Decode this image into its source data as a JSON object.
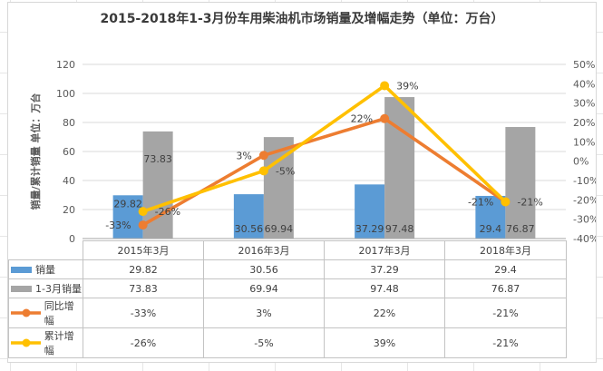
{
  "chart_data": {
    "type": "combo-bar-line",
    "title": "2015-2018年1-3月份车用柴油机市场销量及增幅走势（单位：万台）",
    "ylabel": "销量/累计销量 单位：万台",
    "categories": [
      "2015年3月",
      "2016年3月",
      "2017年3月",
      "2018年3月"
    ],
    "series": [
      {
        "name": "销量",
        "type": "bar",
        "axis": "left",
        "color": "#5B9BD5",
        "values": [
          29.82,
          30.56,
          37.29,
          29.4
        ],
        "labels": [
          "29.82",
          "30.56",
          "37.29",
          "29.4"
        ],
        "label_pos": [
          "inside-top",
          "inside-bottom",
          "inside-bottom",
          "inside-bottom"
        ]
      },
      {
        "name": "1-3月销量",
        "type": "bar",
        "axis": "left",
        "color": "#A5A5A5",
        "values": [
          73.83,
          69.94,
          97.48,
          76.87
        ],
        "labels": [
          "73.83",
          "69.94",
          "97.48",
          "76.87"
        ],
        "label_pos": [
          "inside-upper",
          "inside-bottom",
          "inside-bottom",
          "inside-bottom"
        ]
      },
      {
        "name": "同比增幅",
        "type": "line",
        "axis": "right",
        "color": "#ED7D31",
        "values": [
          -33,
          3,
          22,
          -21
        ],
        "labels": [
          "-33%",
          "3%",
          "22%",
          "-21%"
        ],
        "label_side": "left"
      },
      {
        "name": "累计增幅",
        "type": "line",
        "axis": "right",
        "color": "#FFC000",
        "values": [
          -26,
          -5,
          39,
          -21
        ],
        "labels": [
          "-26%",
          "-5%",
          "39%",
          "-21%"
        ],
        "label_side": "right"
      }
    ],
    "left_axis": {
      "min": 0,
      "max": 120,
      "step": 20,
      "ticks": [
        "0",
        "20",
        "40",
        "60",
        "80",
        "100",
        "120"
      ]
    },
    "right_axis": {
      "min": -40,
      "max": 50,
      "step": 10,
      "ticks": [
        "50%",
        "40%",
        "30%",
        "20%",
        "10%",
        "0%",
        "-10%",
        "-20%",
        "-30%",
        "-40%"
      ]
    },
    "grid": true,
    "legend_position": "data-table-left",
    "colors": {
      "grid_line": "#d9d9d9",
      "axis_line": "#a6a6a6",
      "tick_text": "#595959",
      "data_label_text": "#404040",
      "table_border": "#c3c3c3"
    }
  }
}
